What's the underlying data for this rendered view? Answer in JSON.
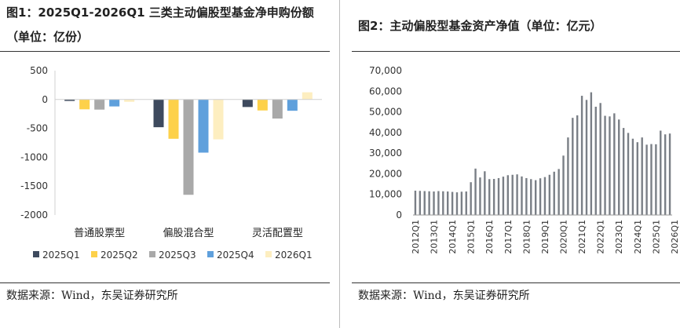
{
  "figure1": {
    "title_line1": "图1：2025Q1-2026Q1 三类主动偏股型基金净申购份额",
    "title_line2": "（单位：亿份）",
    "source": "数据来源：Wind，东吴证券研究所"
  },
  "figure2": {
    "title": "图2：主动偏股型基金资产净值（单位：亿元）",
    "source": "数据来源：Wind，东吴证券研究所"
  },
  "chart_data": [
    {
      "type": "bar",
      "title": "",
      "categories": [
        "普通股票型",
        "偏股混合型",
        "灵活配置型"
      ],
      "series": [
        {
          "name": "2025Q1",
          "color": "#3e4a5e",
          "values": [
            -25,
            -480,
            -130
          ]
        },
        {
          "name": "2025Q2",
          "color": "#fdd14a",
          "values": [
            -170,
            -680,
            -190
          ]
        },
        {
          "name": "2025Q3",
          "color": "#a9a9a9",
          "values": [
            -175,
            -1650,
            -330
          ]
        },
        {
          "name": "2025Q4",
          "color": "#5fa0dc",
          "values": [
            -120,
            -920,
            -195
          ]
        },
        {
          "name": "2026Q1",
          "color": "#fdeec0",
          "values": [
            -40,
            -690,
            125
          ]
        }
      ],
      "ylim": [
        -2000,
        500
      ],
      "yticks": [
        "500",
        "0",
        "-500",
        "-1000",
        "-1500",
        "-2000"
      ],
      "ytick_values": [
        500,
        0,
        -500,
        -1000,
        -1500,
        -2000
      ],
      "legend_position": "bottom",
      "grid": false
    },
    {
      "type": "bar",
      "title": "",
      "series": [
        {
          "name": "",
          "color": "#7a7f86",
          "values": [
            11800,
            11700,
            11600,
            11500,
            11400,
            11600,
            11500,
            11400,
            11200,
            11000,
            11300,
            11400,
            15900,
            22500,
            18200,
            21200,
            17400,
            17500,
            17900,
            18600,
            19300,
            19500,
            19700,
            18700,
            17900,
            17400,
            16900,
            17800,
            18400,
            19500,
            21000,
            22300,
            28800,
            37600,
            47100,
            48300,
            57800,
            55800,
            59500,
            52500,
            54300,
            48100,
            47800,
            49300,
            46300,
            42200,
            39800,
            37000,
            35300,
            37600,
            34100,
            34400,
            34300,
            40900,
            39100,
            39500
          ]
        }
      ],
      "x_tick_labels": [
        "2012Q1",
        "2013Q1",
        "2014Q1",
        "2015Q1",
        "2016Q1",
        "2017Q1",
        "2018Q1",
        "2019Q1",
        "2020Q1",
        "2021Q1",
        "2022Q1",
        "2023Q1",
        "2024Q1",
        "2025Q1",
        "2026Q1"
      ],
      "ylim": [
        0,
        70000
      ],
      "yticks": [
        "0",
        "10,000",
        "20,000",
        "30,000",
        "40,000",
        "50,000",
        "60,000",
        "70,000"
      ],
      "ytick_values": [
        0,
        10000,
        20000,
        30000,
        40000,
        50000,
        60000,
        70000
      ],
      "grid": false
    }
  ]
}
